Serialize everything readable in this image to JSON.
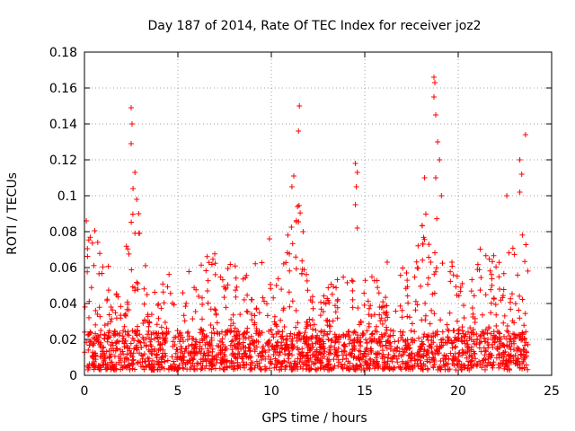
{
  "chart_data": {
    "type": "scatter",
    "title": "Day 187 of 2014, Rate Of TEC Index for receiver joz2",
    "xlabel": "GPS time / hours",
    "ylabel": "ROTI / TECUs",
    "xlim": [
      0,
      25
    ],
    "ylim": [
      0,
      0.18
    ],
    "xticks": [
      0,
      5,
      10,
      15,
      20,
      25
    ],
    "yticks": [
      0,
      0.02,
      0.04,
      0.06,
      0.08,
      0.1,
      0.12,
      0.14,
      0.16,
      0.18
    ],
    "xtick_labels": [
      "0",
      "5",
      "10",
      "15",
      "20",
      "25"
    ],
    "ytick_labels": [
      "0",
      "0.02",
      "0.04",
      "0.06",
      "0.08",
      "0.1",
      "0.12",
      "0.14",
      "0.16",
      "0.18"
    ],
    "grid": true,
    "marker": "+",
    "marker_color": "#ff0000",
    "series": [
      {
        "name": "ROTI",
        "envelope": [
          [
            0.0,
            0.085
          ],
          [
            0.5,
            0.082
          ],
          [
            1.0,
            0.068
          ],
          [
            1.5,
            0.055
          ],
          [
            2.0,
            0.06
          ],
          [
            2.5,
            0.105
          ],
          [
            3.0,
            0.08
          ],
          [
            3.5,
            0.05
          ],
          [
            4.0,
            0.05
          ],
          [
            4.5,
            0.06
          ],
          [
            5.0,
            0.058
          ],
          [
            5.5,
            0.06
          ],
          [
            6.0,
            0.062
          ],
          [
            6.5,
            0.068
          ],
          [
            7.0,
            0.073
          ],
          [
            7.5,
            0.068
          ],
          [
            8.0,
            0.07
          ],
          [
            8.5,
            0.062
          ],
          [
            9.0,
            0.062
          ],
          [
            9.5,
            0.063
          ],
          [
            10.0,
            0.06
          ],
          [
            10.5,
            0.058
          ],
          [
            11.0,
            0.1
          ],
          [
            11.5,
            0.095
          ],
          [
            12.0,
            0.05
          ],
          [
            12.5,
            0.045
          ],
          [
            13.0,
            0.048
          ],
          [
            13.5,
            0.058
          ],
          [
            14.0,
            0.055
          ],
          [
            14.5,
            0.06
          ],
          [
            15.0,
            0.055
          ],
          [
            15.5,
            0.055
          ],
          [
            16.0,
            0.05
          ],
          [
            16.5,
            0.055
          ],
          [
            17.0,
            0.06
          ],
          [
            17.5,
            0.065
          ],
          [
            18.0,
            0.09
          ],
          [
            18.5,
            0.095
          ],
          [
            19.0,
            0.085
          ],
          [
            19.5,
            0.065
          ],
          [
            20.0,
            0.062
          ],
          [
            20.5,
            0.06
          ],
          [
            21.0,
            0.07
          ],
          [
            21.5,
            0.075
          ],
          [
            22.0,
            0.065
          ],
          [
            22.5,
            0.06
          ],
          [
            23.0,
            0.08
          ],
          [
            23.5,
            0.092
          ],
          [
            23.75,
            0.06
          ]
        ],
        "peaks": [
          {
            "x": 2.5,
            "y": 0.149
          },
          {
            "x": 2.55,
            "y": 0.14
          },
          {
            "x": 2.5,
            "y": 0.129
          },
          {
            "x": 2.7,
            "y": 0.113
          },
          {
            "x": 2.6,
            "y": 0.104
          },
          {
            "x": 2.8,
            "y": 0.098
          },
          {
            "x": 2.9,
            "y": 0.09
          },
          {
            "x": 11.2,
            "y": 0.111
          },
          {
            "x": 11.1,
            "y": 0.105
          },
          {
            "x": 11.5,
            "y": 0.15
          },
          {
            "x": 11.45,
            "y": 0.136
          },
          {
            "x": 11.4,
            "y": 0.094
          },
          {
            "x": 11.7,
            "y": 0.08
          },
          {
            "x": 14.5,
            "y": 0.118
          },
          {
            "x": 14.6,
            "y": 0.113
          },
          {
            "x": 14.55,
            "y": 0.105
          },
          {
            "x": 14.5,
            "y": 0.095
          },
          {
            "x": 14.6,
            "y": 0.082
          },
          {
            "x": 18.7,
            "y": 0.166
          },
          {
            "x": 18.75,
            "y": 0.163
          },
          {
            "x": 18.7,
            "y": 0.155
          },
          {
            "x": 18.8,
            "y": 0.145
          },
          {
            "x": 18.9,
            "y": 0.13
          },
          {
            "x": 19.0,
            "y": 0.12
          },
          {
            "x": 18.8,
            "y": 0.11
          },
          {
            "x": 18.2,
            "y": 0.11
          },
          {
            "x": 19.1,
            "y": 0.1
          },
          {
            "x": 23.6,
            "y": 0.134
          },
          {
            "x": 23.3,
            "y": 0.12
          },
          {
            "x": 23.4,
            "y": 0.112
          },
          {
            "x": 23.3,
            "y": 0.102
          },
          {
            "x": 22.6,
            "y": 0.1
          },
          {
            "x": 9.9,
            "y": 0.076
          },
          {
            "x": 16.2,
            "y": 0.063
          },
          {
            "x": 0.1,
            "y": 0.086
          }
        ],
        "baseline_range": [
          0.003,
          0.025
        ],
        "x_range": [
          0.0,
          23.75
        ]
      }
    ]
  }
}
